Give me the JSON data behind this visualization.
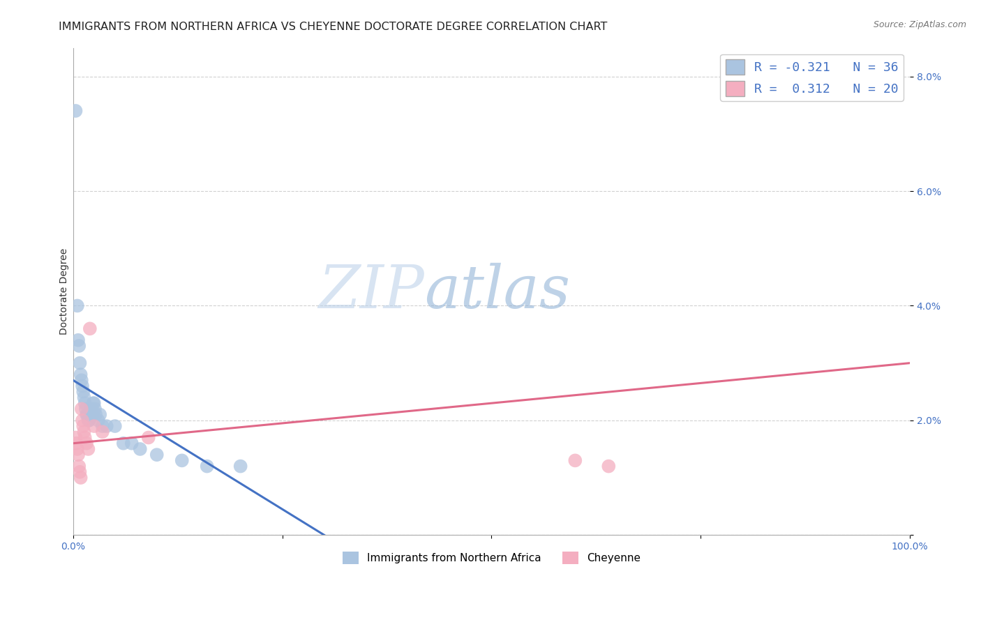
{
  "title": "IMMIGRANTS FROM NORTHERN AFRICA VS CHEYENNE DOCTORATE DEGREE CORRELATION CHART",
  "source": "Source: ZipAtlas.com",
  "ylabel": "Doctorate Degree",
  "xlim": [
    0.0,
    1.0
  ],
  "ylim": [
    0.0,
    0.085
  ],
  "yticks": [
    0.0,
    0.02,
    0.04,
    0.06,
    0.08
  ],
  "yticklabels": [
    "",
    "2.0%",
    "4.0%",
    "6.0%",
    "8.0%"
  ],
  "xtick_positions": [
    0.0,
    0.25,
    0.5,
    0.75,
    1.0
  ],
  "xticklabels": [
    "0.0%",
    "",
    "",
    "",
    "100.0%"
  ],
  "legend1_label": "R = -0.321   N = 36",
  "legend2_label": "R =  0.312   N = 20",
  "blue_color": "#aac4e0",
  "blue_line_color": "#4472c4",
  "pink_color": "#f4aec0",
  "pink_line_color": "#e06888",
  "tick_label_color": "#4472c4",
  "watermark_zip": "ZIP",
  "watermark_atlas": "atlas",
  "blue_scatter_x": [
    0.003,
    0.005,
    0.006,
    0.007,
    0.008,
    0.009,
    0.01,
    0.011,
    0.012,
    0.013,
    0.014,
    0.015,
    0.016,
    0.017,
    0.018,
    0.019,
    0.02,
    0.021,
    0.022,
    0.023,
    0.024,
    0.025,
    0.026,
    0.027,
    0.03,
    0.032,
    0.035,
    0.04,
    0.05,
    0.06,
    0.07,
    0.08,
    0.1,
    0.13,
    0.16,
    0.2
  ],
  "blue_scatter_y": [
    0.074,
    0.04,
    0.034,
    0.033,
    0.03,
    0.028,
    0.027,
    0.026,
    0.025,
    0.024,
    0.023,
    0.022,
    0.021,
    0.021,
    0.02,
    0.02,
    0.021,
    0.022,
    0.022,
    0.021,
    0.023,
    0.023,
    0.022,
    0.021,
    0.02,
    0.021,
    0.019,
    0.019,
    0.019,
    0.016,
    0.016,
    0.015,
    0.014,
    0.013,
    0.012,
    0.012
  ],
  "pink_scatter_x": [
    0.003,
    0.004,
    0.005,
    0.006,
    0.007,
    0.008,
    0.009,
    0.01,
    0.011,
    0.012,
    0.013,
    0.014,
    0.016,
    0.018,
    0.02,
    0.025,
    0.035,
    0.09,
    0.6,
    0.64
  ],
  "pink_scatter_y": [
    0.017,
    0.016,
    0.015,
    0.014,
    0.012,
    0.011,
    0.01,
    0.022,
    0.02,
    0.019,
    0.018,
    0.017,
    0.016,
    0.015,
    0.036,
    0.019,
    0.018,
    0.017,
    0.013,
    0.012
  ],
  "blue_trend_x": [
    0.0,
    0.3
  ],
  "blue_trend_y": [
    0.027,
    0.0
  ],
  "pink_trend_x": [
    0.0,
    1.0
  ],
  "pink_trend_y": [
    0.016,
    0.03
  ],
  "title_fontsize": 11.5,
  "axis_fontsize": 10,
  "tick_fontsize": 10,
  "background_color": "#ffffff",
  "grid_color": "#cccccc",
  "bottom_legend1": "Immigrants from Northern Africa",
  "bottom_legend2": "Cheyenne"
}
